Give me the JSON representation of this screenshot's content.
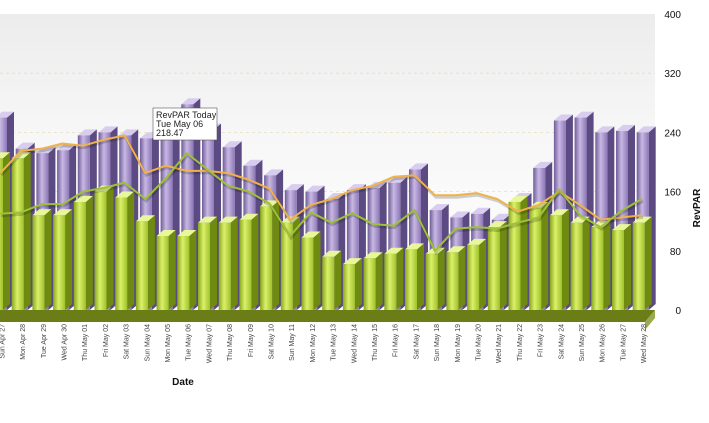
{
  "chart_data": {
    "type": "bar",
    "title": "",
    "xlabel": "Date",
    "ylabel": "RevPAR",
    "ylim": [
      0,
      400
    ],
    "yticks": [
      0,
      80,
      160,
      240,
      320,
      400
    ],
    "grid": true,
    "categories": [
      "Sun Apr 27",
      "Mon Apr 28",
      "Tue Apr 29",
      "Wed Apr 30",
      "Thu May 01",
      "Fri May 02",
      "Sat May 03",
      "Sun May 04",
      "Mon May 05",
      "Tue May 06",
      "Wed May 07",
      "Thu May 08",
      "Fri May 09",
      "Sat May 10",
      "Sun May 11",
      "Mon May 12",
      "Tue May 13",
      "Wed May 14",
      "Thu May 15",
      "Fri May 16",
      "Sat May 17",
      "Sun May 18",
      "Mon May 19",
      "Tue May 20",
      "Wed May 21",
      "Thu May 22",
      "Fri May 23",
      "Sat May 24",
      "Sun May 25",
      "Mon May 26",
      "Tue May 27",
      "Wed May 28"
    ],
    "series": [
      {
        "kind": "bar",
        "color": "#8f7fb6",
        "values": [
          260,
          218,
          212,
          216,
          236,
          240,
          236,
          232,
          240,
          278,
          244,
          220,
          195,
          182,
          162,
          160,
          150,
          162,
          165,
          172,
          190,
          135,
          125,
          130,
          122,
          150,
          192,
          256,
          260,
          240,
          242,
          240
        ]
      },
      {
        "kind": "bar",
        "color": "#b9d84a",
        "values": [
          205,
          205,
          128,
          128,
          146,
          160,
          152,
          120,
          100,
          100,
          118,
          118,
          122,
          140,
          118,
          98,
          72,
          62,
          70,
          76,
          82,
          76,
          78,
          88,
          112,
          146,
          138,
          128,
          118,
          112,
          108,
          118
        ]
      },
      {
        "kind": "line",
        "color": "#f0b24a",
        "values": [
          185,
          215,
          218,
          225,
          222,
          230,
          236,
          185,
          195,
          188,
          188,
          185,
          176,
          164,
          122,
          142,
          150,
          162,
          168,
          180,
          182,
          155,
          155,
          158,
          150,
          133,
          142,
          160,
          142,
          122,
          125,
          128
        ]
      },
      {
        "kind": "line",
        "color": "#9fc03a",
        "values": [
          130,
          132,
          143,
          143,
          160,
          165,
          172,
          150,
          178,
          212,
          190,
          168,
          160,
          144,
          100,
          132,
          118,
          131,
          116,
          114,
          135,
          80,
          110,
          112,
          110,
          118,
          125,
          163,
          128,
          112,
          134,
          150
        ]
      }
    ],
    "tooltip": {
      "index": 9,
      "series_label": "RevPAR Today",
      "date": "Tue May 06",
      "value": "218.47"
    }
  }
}
